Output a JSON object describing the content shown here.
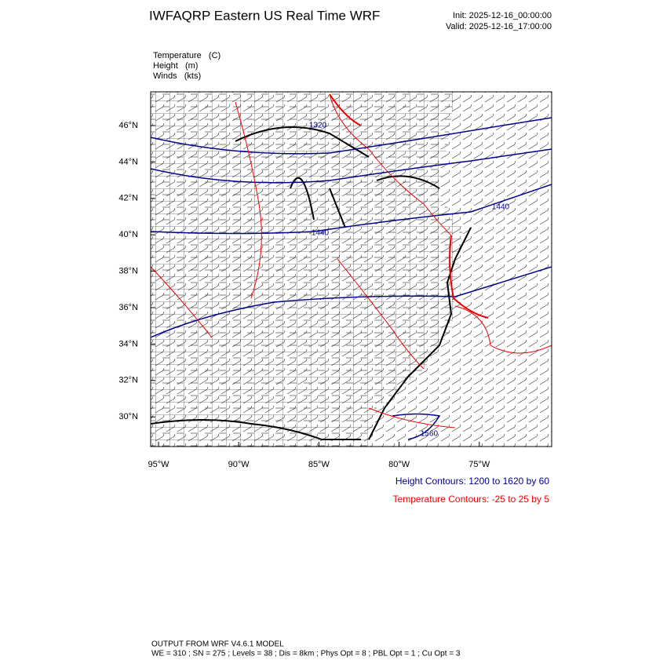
{
  "header": {
    "title": "IWFAQRP Eastern US Real Time WRF",
    "init": "Init: 2025-12-16_00:00:00",
    "valid": "Valid: 2025-12-16_17:00:00"
  },
  "fields": [
    "Temperature   (C)",
    "Height   (m)",
    "Winds   (kts)"
  ],
  "map": {
    "lat_labels": [
      "46°N",
      "44°N",
      "42°N",
      "40°N",
      "38°N",
      "36°N",
      "34°N",
      "32°N",
      "30°N"
    ],
    "lon_labels": [
      "95°W",
      "90°W",
      "85°W",
      "80°W",
      "75°W"
    ],
    "contour_labels": [
      "1320",
      "1440",
      "1440",
      "1560"
    ]
  },
  "legend": [
    "Height Contours: 1200 to 1620 by 60",
    "Temperature Contours: -25 to 25 by 5"
  ],
  "footer": [
    "OUTPUT FROM WRF V4.6.1 MODEL",
    "WE = 310 ; SN = 275 ; Levels = 38 ; Dis = 8km ; Phys Opt = 8 ; PBL Opt = 1 ; Cu Opt = 3"
  ]
}
